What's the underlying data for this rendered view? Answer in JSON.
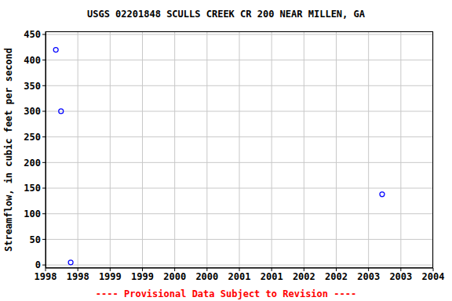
{
  "chart_data": {
    "type": "scatter",
    "title": "USGS 02201848 SCULLS CREEK CR 200 NEAR MILLEN, GA",
    "y_label": "Streamflow, in cubic feet per second",
    "annotation": "---- Provisional Data Subject to Revision ----",
    "x": [
      1998.16,
      1998.24,
      1998.39,
      2003.21
    ],
    "values": [
      420,
      300,
      5,
      138
    ],
    "color": "#0000ff",
    "marker": "circle",
    "grid": true,
    "xlim": [
      1998,
      2004
    ],
    "xticks": [
      {
        "value": 1998,
        "label": "1998"
      },
      {
        "value": 1998.5,
        "label": "1998"
      },
      {
        "value": 1999,
        "label": "1999"
      },
      {
        "value": 1999.5,
        "label": "1999"
      },
      {
        "value": 2000,
        "label": "2000"
      },
      {
        "value": 2000.5,
        "label": "2000"
      },
      {
        "value": 2001,
        "label": "2001"
      },
      {
        "value": 2001.5,
        "label": "2001"
      },
      {
        "value": 2002,
        "label": "2002"
      },
      {
        "value": 2002.5,
        "label": "2002"
      },
      {
        "value": 2003,
        "label": "2003"
      },
      {
        "value": 2003.5,
        "label": "2003"
      },
      {
        "value": 2004,
        "label": "2004"
      }
    ],
    "ylim": [
      -6,
      456
    ],
    "yticks": [
      0,
      50,
      100,
      150,
      200,
      250,
      300,
      350,
      400,
      450
    ]
  }
}
